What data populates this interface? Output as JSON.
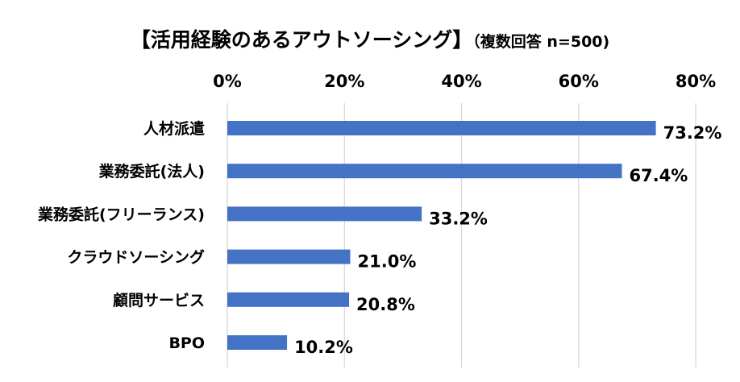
{
  "title": {
    "main": "【活用経験のあるアウトソーシング】",
    "sub": "（複数回答 n=500)"
  },
  "chart_data": {
    "type": "bar",
    "orientation": "horizontal",
    "categories": [
      "人材派遣",
      "業務委託(法人)",
      "業務委託(フリーランス)",
      "クラウドソーシング",
      "顧問サービス",
      "BPO"
    ],
    "values": [
      73.2,
      67.4,
      33.2,
      21.0,
      20.8,
      10.2
    ],
    "value_labels": [
      "73.2%",
      "67.4%",
      "33.2%",
      "21.0%",
      "20.8%",
      "10.2%"
    ],
    "xlim": [
      0,
      80
    ],
    "x_ticks": [
      0,
      20,
      40,
      60,
      80
    ],
    "x_tick_labels": [
      "0%",
      "20%",
      "40%",
      "60%",
      "80%"
    ],
    "x_axis_position": "top",
    "grid": true,
    "legend": "none",
    "bar_color": "#4472C4",
    "grid_color": "#D9D9D9"
  }
}
